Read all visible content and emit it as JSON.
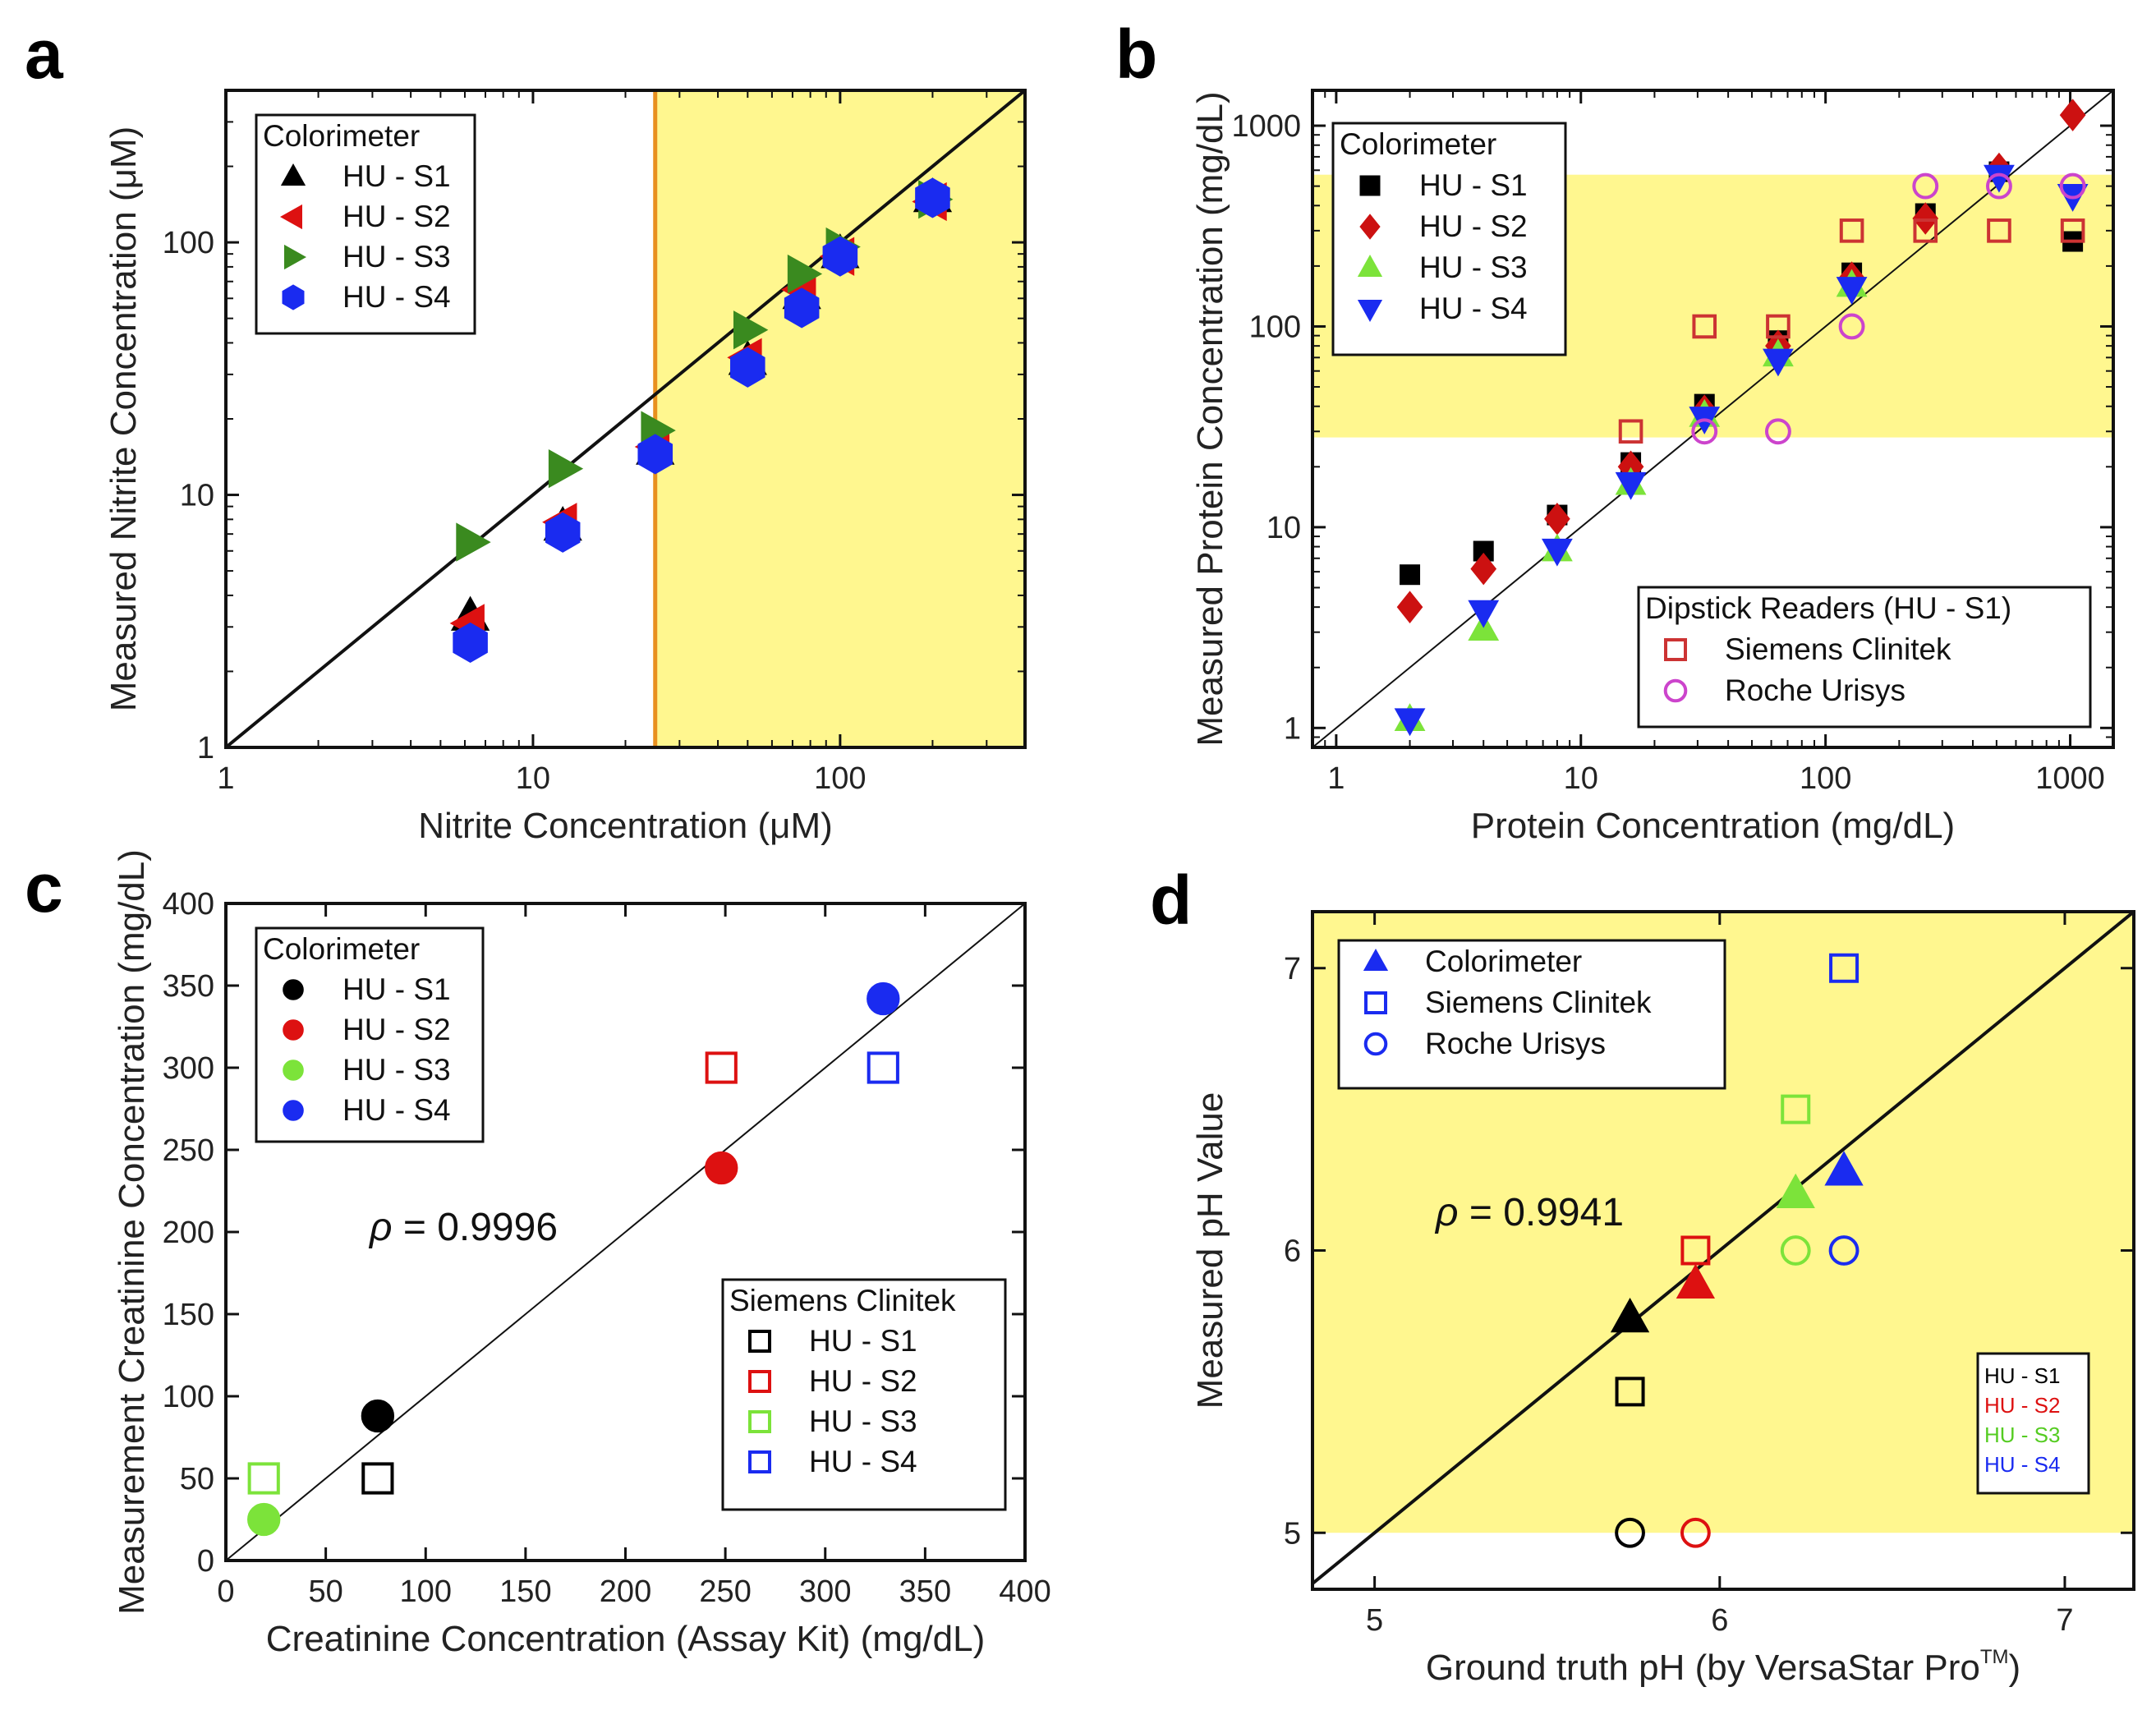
{
  "chart_data": [
    {
      "panel": "a",
      "type": "scatter",
      "xscale": "log",
      "yscale": "log",
      "xlim": [
        1,
        400
      ],
      "ylim": [
        1,
        400
      ],
      "xticks": [
        1,
        10,
        100
      ],
      "yticks": [
        1,
        10,
        100
      ],
      "xtick_labels": [
        "1",
        "10",
        "100"
      ],
      "ytick_labels": [
        "1",
        "10",
        "100"
      ],
      "xlabel": "Nitrite Concentration (μM)",
      "ylabel": "Measured Nitrite Concentration (μM)",
      "shade": {
        "x_from": 25,
        "x_to": 400,
        "y_from": 1,
        "y_to": 400,
        "color": "#FFF78F"
      },
      "vline": {
        "x": 25,
        "color": "#E8901F"
      },
      "identity_line": true,
      "legends": [
        {
          "title": "Colorimeter",
          "position": "top-left",
          "entries": [
            {
              "label": "HU - S1",
              "marker": "triangle-up",
              "color": "#000000",
              "filled": true
            },
            {
              "label": "HU - S2",
              "marker": "triangle-left",
              "color": "#DD1111",
              "filled": true
            },
            {
              "label": "HU - S3",
              "marker": "triangle-right",
              "color": "#3A8A1F",
              "filled": true
            },
            {
              "label": "HU - S4",
              "marker": "hexagon",
              "color": "#1A2BF0",
              "filled": true
            }
          ]
        }
      ],
      "series": [
        {
          "name": "HU - S1",
          "marker": "triangle-up",
          "color": "#000000",
          "filled": true,
          "size": 24,
          "x": [
            6.25,
            12.5,
            25,
            50,
            75,
            100,
            200
          ],
          "y": [
            3.3,
            7.5,
            15,
            34,
            62,
            90,
            150
          ]
        },
        {
          "name": "HU - S2",
          "marker": "triangle-left",
          "color": "#DD1111",
          "filled": true,
          "size": 24,
          "x": [
            6.25,
            12.5,
            25,
            50,
            75,
            100,
            200
          ],
          "y": [
            3.1,
            7.8,
            15.5,
            35,
            65,
            88,
            145
          ]
        },
        {
          "name": "HU - S3",
          "marker": "triangle-right",
          "color": "#3A8A1F",
          "filled": true,
          "size": 24,
          "x": [
            6.25,
            12.5,
            25,
            50,
            75,
            100,
            200
          ],
          "y": [
            6.5,
            12.7,
            18,
            45,
            75,
            96,
            148
          ]
        },
        {
          "name": "HU - S4",
          "marker": "hexagon",
          "color": "#1A2BF0",
          "filled": true,
          "size": 24,
          "x": [
            6.25,
            12.5,
            25,
            50,
            75,
            100,
            200
          ],
          "y": [
            2.6,
            7.1,
            14.5,
            32,
            55,
            88,
            150
          ]
        }
      ]
    },
    {
      "panel": "b",
      "type": "scatter",
      "xscale": "log",
      "yscale": "log",
      "xlim": [
        0.8,
        1500
      ],
      "ylim": [
        0.8,
        1500
      ],
      "xticks": [
        1,
        10,
        100,
        1000
      ],
      "yticks": [
        1,
        10,
        100,
        1000
      ],
      "xtick_labels": [
        "1",
        "10",
        "100",
        "1000"
      ],
      "ytick_labels": [
        "1",
        "10",
        "100",
        "1000"
      ],
      "xlabel": "Protein Concentration (mg/dL)",
      "ylabel": "Measured Protein Concentration (mg/dL)",
      "shade": {
        "x_from": 0.8,
        "x_to": 1500,
        "y_from": 28,
        "y_to": 570,
        "color": "#FFF78F"
      },
      "identity_line": true,
      "legends": [
        {
          "title": "Colorimeter",
          "position": "top-left",
          "entries": [
            {
              "label": "HU - S1",
              "marker": "square",
              "color": "#000000",
              "filled": true
            },
            {
              "label": "HU - S2",
              "marker": "diamond",
              "color": "#CC1111",
              "filled": true
            },
            {
              "label": "HU - S3",
              "marker": "triangle-up",
              "color": "#7CE33A",
              "filled": true
            },
            {
              "label": "HU - S4",
              "marker": "triangle-down",
              "color": "#1A2BF0",
              "filled": true
            }
          ]
        },
        {
          "title": "Dipstick Readers (HU - S1)",
          "position": "bottom-right",
          "entries": [
            {
              "label": "Siemens Clinitek",
              "marker": "square",
              "color": "#CC3333",
              "filled": false
            },
            {
              "label": "Roche Urisys",
              "marker": "circle",
              "color": "#CC44CC",
              "filled": false
            }
          ]
        }
      ],
      "series": [
        {
          "name": "HU - S1",
          "marker": "square",
          "color": "#000000",
          "filled": true,
          "size": 15,
          "x": [
            2,
            4,
            8,
            16,
            32,
            64,
            128,
            256,
            512,
            1024
          ],
          "y": [
            5.8,
            7.6,
            11.5,
            21,
            41,
            85,
            185,
            365,
            590,
            265
          ]
        },
        {
          "name": "HU - S2",
          "marker": "diamond",
          "color": "#CC1111",
          "filled": true,
          "size": 19,
          "x": [
            2,
            4,
            8,
            16,
            32,
            64,
            128,
            256,
            512,
            1024
          ],
          "y": [
            4,
            6.2,
            11,
            20,
            38,
            80,
            175,
            345,
            610,
            1130
          ]
        },
        {
          "name": "HU - S3",
          "marker": "triangle-up",
          "color": "#7CE33A",
          "filled": true,
          "size": 19,
          "x": [
            2,
            4,
            8,
            16,
            32,
            64,
            128
          ],
          "y": [
            1.1,
            3.1,
            7.7,
            16.5,
            36,
            72,
            160
          ]
        },
        {
          "name": "HU - S4",
          "marker": "triangle-down",
          "color": "#1A2BF0",
          "filled": true,
          "size": 19,
          "x": [
            2,
            4,
            8,
            16,
            32,
            64,
            128,
            512,
            1024
          ],
          "y": [
            1.1,
            3.8,
            7.7,
            16.5,
            35,
            68,
            155,
            560,
            450
          ]
        },
        {
          "name": "Siemens Clinitek",
          "marker": "square",
          "color": "#CC3333",
          "filled": false,
          "size": 16,
          "x": [
            16,
            32,
            64,
            128,
            256,
            512,
            1024
          ],
          "y": [
            30,
            100,
            100,
            300,
            300,
            300,
            300
          ]
        },
        {
          "name": "Roche Urisys",
          "marker": "circle",
          "color": "#CC44CC",
          "filled": false,
          "size": 17,
          "x": [
            32,
            64,
            128,
            256,
            512,
            1024
          ],
          "y": [
            30,
            30,
            100,
            500,
            500,
            500
          ]
        }
      ]
    },
    {
      "panel": "c",
      "type": "scatter",
      "xscale": "linear",
      "yscale": "linear",
      "xlim": [
        0,
        400
      ],
      "ylim": [
        0,
        400
      ],
      "xticks": [
        0,
        50,
        100,
        150,
        200,
        250,
        300,
        350,
        400
      ],
      "yticks": [
        0,
        50,
        100,
        150,
        200,
        250,
        300,
        350,
        400
      ],
      "xtick_labels": [
        "0",
        "50",
        "100",
        "150",
        "200",
        "250",
        "300",
        "350",
        "400"
      ],
      "ytick_labels": [
        "0",
        "50",
        "100",
        "150",
        "200",
        "250",
        "300",
        "350",
        "400"
      ],
      "xlabel": "Creatinine Concentration (Assay Kit) (mg/dL)",
      "ylabel": "Measurement Creatinine Concentration (mg/dL)",
      "identity_line": true,
      "annotation": {
        "symbol": "ρ",
        "text": " = 0.9996"
      },
      "legends": [
        {
          "title": "Colorimeter",
          "position": "top-left",
          "entries": [
            {
              "label": "HU - S1",
              "marker": "circle",
              "color": "#000000",
              "filled": true
            },
            {
              "label": "HU - S2",
              "marker": "circle",
              "color": "#DD1111",
              "filled": true
            },
            {
              "label": "HU - S3",
              "marker": "circle",
              "color": "#7CE33A",
              "filled": true
            },
            {
              "label": "HU - S4",
              "marker": "circle",
              "color": "#1A2BF0",
              "filled": true
            }
          ]
        },
        {
          "title": "Siemens Clinitek",
          "position": "bottom-right",
          "entries": [
            {
              "label": "HU - S1",
              "marker": "square",
              "color": "#000000",
              "filled": false
            },
            {
              "label": "HU - S2",
              "marker": "square",
              "color": "#DD1111",
              "filled": false
            },
            {
              "label": "HU - S3",
              "marker": "square",
              "color": "#7CE33A",
              "filled": false
            },
            {
              "label": "HU - S4",
              "marker": "square",
              "color": "#1A2BF0",
              "filled": false
            }
          ]
        }
      ],
      "series": [
        {
          "name": "Colorimeter HU - S1",
          "marker": "circle",
          "color": "#000000",
          "filled": true,
          "size": 24,
          "x": [
            76
          ],
          "y": [
            88
          ]
        },
        {
          "name": "Colorimeter HU - S2",
          "marker": "circle",
          "color": "#DD1111",
          "filled": true,
          "size": 24,
          "x": [
            248
          ],
          "y": [
            239
          ]
        },
        {
          "name": "Colorimeter HU - S3",
          "marker": "circle",
          "color": "#7CE33A",
          "filled": true,
          "size": 24,
          "x": [
            19
          ],
          "y": [
            25
          ]
        },
        {
          "name": "Colorimeter HU - S4",
          "marker": "circle",
          "color": "#1A2BF0",
          "filled": true,
          "size": 24,
          "x": [
            329
          ],
          "y": [
            342
          ]
        },
        {
          "name": "Siemens Clinitek HU - S1",
          "marker": "square",
          "color": "#000000",
          "filled": false,
          "size": 22,
          "x": [
            76
          ],
          "y": [
            50
          ]
        },
        {
          "name": "Siemens Clinitek HU - S2",
          "marker": "square",
          "color": "#DD1111",
          "filled": false,
          "size": 22,
          "x": [
            248
          ],
          "y": [
            300
          ]
        },
        {
          "name": "Siemens Clinitek HU - S3",
          "marker": "square",
          "color": "#7CE33A",
          "filled": false,
          "size": 22,
          "x": [
            19
          ],
          "y": [
            50
          ]
        },
        {
          "name": "Siemens Clinitek HU - S4",
          "marker": "square",
          "color": "#1A2BF0",
          "filled": false,
          "size": 22,
          "x": [
            329
          ],
          "y": [
            300
          ]
        }
      ]
    },
    {
      "panel": "d",
      "type": "scatter",
      "xscale": "linear",
      "yscale": "linear",
      "xlim": [
        4.82,
        7.2
      ],
      "ylim": [
        4.8,
        7.2
      ],
      "xticks": [
        5,
        6,
        7
      ],
      "yticks": [
        5,
        6,
        7
      ],
      "xtick_labels": [
        "5",
        "6",
        "7"
      ],
      "ytick_labels": [
        "5",
        "6",
        "7"
      ],
      "xlabel": "Ground truth pH (by VersaStar Pro",
      "xlabel_superscript": "TM",
      "xlabel_suffix": ")",
      "ylabel": "Measured pH Value",
      "shade": {
        "x_from": 4.82,
        "x_to": 7.2,
        "y_from": 5,
        "y_to": 7.2,
        "color": "#FFF78F"
      },
      "identity_line": true,
      "annotation": {
        "symbol": "ρ",
        "text": " = 0.9941"
      },
      "legends": [
        {
          "title": "",
          "position": "top-left",
          "entries": [
            {
              "label": "Colorimeter",
              "marker": "triangle-up",
              "color": "#1A2BF0",
              "filled": true
            },
            {
              "label": "Siemens Clinitek",
              "marker": "square",
              "color": "#1A2BF0",
              "filled": false
            },
            {
              "label": "Roche Urisys",
              "marker": "circle",
              "color": "#1A2BF0",
              "filled": false
            }
          ]
        },
        {
          "title": "",
          "position": "bottom-right",
          "small": true,
          "entries": [
            {
              "label": "HU - S1",
              "color": "#000000"
            },
            {
              "label": "HU - S2",
              "color": "#DD1111"
            },
            {
              "label": "HU - S3",
              "color": "#55CC22"
            },
            {
              "label": "HU - S4",
              "color": "#1A2BF0"
            }
          ]
        }
      ],
      "series": [
        {
          "name": "Colorimeter HU - S1",
          "marker": "triangle-up",
          "color": "#000000",
          "filled": true,
          "size": 24,
          "x": [
            5.74
          ],
          "y": [
            5.76
          ]
        },
        {
          "name": "Colorimeter HU - S2",
          "marker": "triangle-up",
          "color": "#DD1111",
          "filled": true,
          "size": 24,
          "x": [
            5.93
          ],
          "y": [
            5.88
          ]
        },
        {
          "name": "Colorimeter HU - S3",
          "marker": "triangle-up",
          "color": "#7CE33A",
          "filled": true,
          "size": 24,
          "x": [
            6.22
          ],
          "y": [
            6.2
          ]
        },
        {
          "name": "Colorimeter HU - S4",
          "marker": "triangle-up",
          "color": "#1A2BF0",
          "filled": true,
          "size": 24,
          "x": [
            6.36
          ],
          "y": [
            6.28
          ]
        },
        {
          "name": "Siemens Clinitek HU - S1",
          "marker": "square",
          "color": "#000000",
          "filled": false,
          "size": 20,
          "x": [
            5.74
          ],
          "y": [
            5.5
          ]
        },
        {
          "name": "Siemens Clinitek HU - S2",
          "marker": "square",
          "color": "#DD1111",
          "filled": false,
          "size": 20,
          "x": [
            5.93
          ],
          "y": [
            6.0
          ]
        },
        {
          "name": "Siemens Clinitek HU - S3",
          "marker": "square",
          "color": "#7CE33A",
          "filled": false,
          "size": 20,
          "x": [
            6.22
          ],
          "y": [
            6.5
          ]
        },
        {
          "name": "Siemens Clinitek HU - S4",
          "marker": "square",
          "color": "#1A2BF0",
          "filled": false,
          "size": 20,
          "x": [
            6.36
          ],
          "y": [
            7.0
          ]
        },
        {
          "name": "Roche Urisys HU - S1",
          "marker": "circle",
          "color": "#000000",
          "filled": false,
          "size": 20,
          "x": [
            5.74
          ],
          "y": [
            5.0
          ]
        },
        {
          "name": "Roche Urisys HU - S2",
          "marker": "circle",
          "color": "#DD1111",
          "filled": false,
          "size": 20,
          "x": [
            5.93
          ],
          "y": [
            5.0
          ]
        },
        {
          "name": "Roche Urisys HU - S3",
          "marker": "circle",
          "color": "#7CE33A",
          "filled": false,
          "size": 20,
          "x": [
            6.22
          ],
          "y": [
            6.0
          ]
        },
        {
          "name": "Roche Urisys HU - S4",
          "marker": "circle",
          "color": "#1A2BF0",
          "filled": false,
          "size": 20,
          "x": [
            6.36
          ],
          "y": [
            6.0
          ]
        }
      ]
    }
  ]
}
